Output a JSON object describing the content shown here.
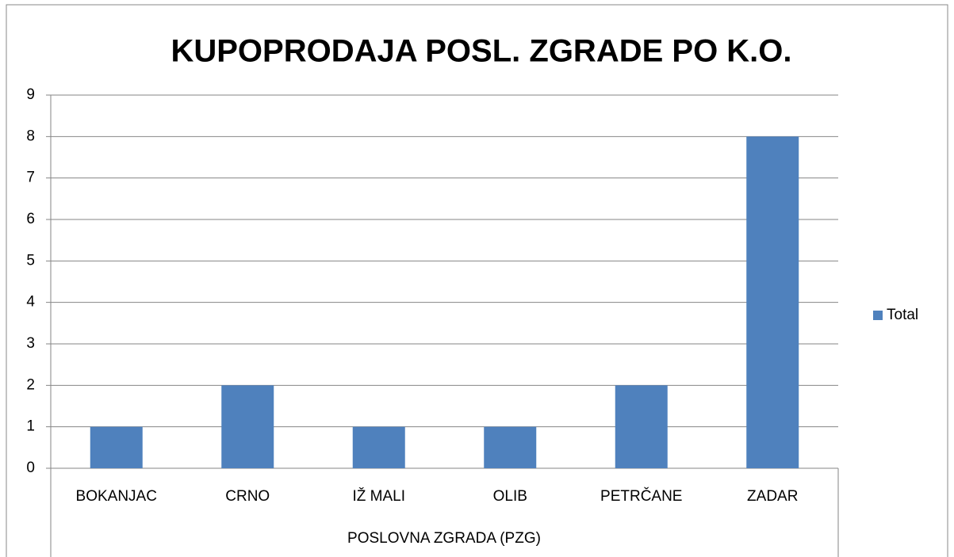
{
  "chart_data": {
    "type": "bar",
    "title": "KUPOPRODAJA POSL. ZGRADE PO K.O.",
    "categories": [
      "BOKANJAC",
      "CRNO",
      "IŽ MALI",
      "OLIB",
      "PETRČANE",
      "ZADAR"
    ],
    "series": [
      {
        "name": "Total",
        "color": "#4f81bd",
        "values": [
          1,
          2,
          1,
          1,
          2,
          8
        ]
      }
    ],
    "x_label": "POSLOVNA ZGRADA (PZG)",
    "ylim": [
      0,
      9
    ],
    "yticks": [
      0,
      1,
      2,
      3,
      4,
      5,
      6,
      7,
      8,
      9
    ],
    "grid": true,
    "legend": "right"
  }
}
